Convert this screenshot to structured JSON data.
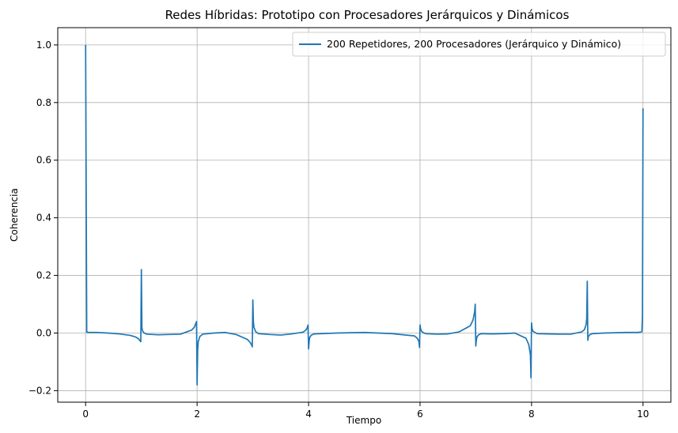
{
  "chart_data": {
    "type": "line",
    "title": "Redes Híbridas: Prototipo con Procesadores Jerárquicos y Dinámicos",
    "xlabel": "Tiempo",
    "ylabel": "Coherencia",
    "xlim": [
      -0.5,
      10.5
    ],
    "ylim": [
      -0.24,
      1.06
    ],
    "x_ticks": [
      0,
      2,
      4,
      6,
      8,
      10
    ],
    "y_ticks": [
      -0.2,
      0.0,
      0.2,
      0.4,
      0.6,
      0.8,
      1.0
    ],
    "grid": true,
    "legend_position": "top-right",
    "series": [
      {
        "name": "200 Repetidores, 200 Procesadores (Jerárquico y Dinámico)",
        "color": "#1f77b4",
        "x": [
          0.0,
          0.01,
          0.02,
          0.05,
          0.2,
          0.4,
          0.6,
          0.8,
          0.9,
          0.95,
          0.98,
          0.99,
          1.0,
          1.01,
          1.02,
          1.05,
          1.1,
          1.3,
          1.5,
          1.7,
          1.9,
          1.95,
          1.98,
          1.99,
          2.0,
          2.01,
          2.02,
          2.05,
          2.1,
          2.3,
          2.5,
          2.7,
          2.9,
          2.95,
          2.98,
          2.99,
          3.0,
          3.01,
          3.02,
          3.05,
          3.1,
          3.3,
          3.5,
          3.7,
          3.9,
          3.95,
          3.98,
          3.99,
          4.0,
          4.01,
          4.02,
          4.05,
          4.1,
          4.5,
          5.0,
          5.5,
          5.9,
          5.95,
          5.98,
          5.99,
          6.0,
          6.01,
          6.02,
          6.05,
          6.1,
          6.3,
          6.5,
          6.7,
          6.9,
          6.95,
          6.98,
          6.99,
          7.0,
          7.01,
          7.02,
          7.05,
          7.1,
          7.3,
          7.5,
          7.7,
          7.9,
          7.95,
          7.98,
          7.99,
          8.0,
          8.01,
          8.02,
          8.05,
          8.1,
          8.3,
          8.5,
          8.7,
          8.9,
          8.95,
          8.98,
          8.99,
          9.0,
          9.01,
          9.02,
          9.05,
          9.1,
          9.3,
          9.5,
          9.7,
          9.9,
          9.95,
          9.98,
          9.99,
          10.0
        ],
        "values": [
          1.0,
          0.5,
          0.003,
          0.002,
          0.002,
          0.0,
          -0.003,
          -0.008,
          -0.014,
          -0.02,
          -0.028,
          -0.03,
          0.22,
          0.02,
          0.008,
          0.0,
          -0.004,
          -0.006,
          -0.005,
          -0.004,
          0.01,
          0.02,
          0.035,
          0.04,
          -0.18,
          -0.06,
          -0.03,
          -0.012,
          -0.004,
          0.0,
          0.002,
          -0.005,
          -0.022,
          -0.032,
          -0.042,
          -0.048,
          0.115,
          0.04,
          0.02,
          0.005,
          -0.002,
          -0.005,
          -0.007,
          -0.003,
          0.003,
          0.01,
          0.02,
          0.028,
          -0.055,
          -0.03,
          -0.015,
          -0.007,
          -0.003,
          0.0,
          0.002,
          -0.002,
          -0.01,
          -0.018,
          -0.03,
          -0.05,
          0.028,
          0.015,
          0.008,
          0.002,
          -0.002,
          -0.004,
          -0.003,
          0.004,
          0.025,
          0.045,
          0.075,
          0.1,
          -0.045,
          -0.025,
          -0.014,
          -0.006,
          -0.002,
          -0.003,
          -0.002,
          0.0,
          -0.018,
          -0.04,
          -0.075,
          -0.155,
          0.035,
          0.015,
          0.008,
          0.003,
          -0.002,
          -0.003,
          -0.004,
          -0.004,
          0.004,
          0.012,
          0.03,
          0.05,
          0.18,
          -0.025,
          -0.012,
          -0.005,
          -0.002,
          0.0,
          0.001,
          0.002,
          0.002,
          0.003,
          0.005,
          0.06,
          0.78
        ]
      }
    ]
  }
}
